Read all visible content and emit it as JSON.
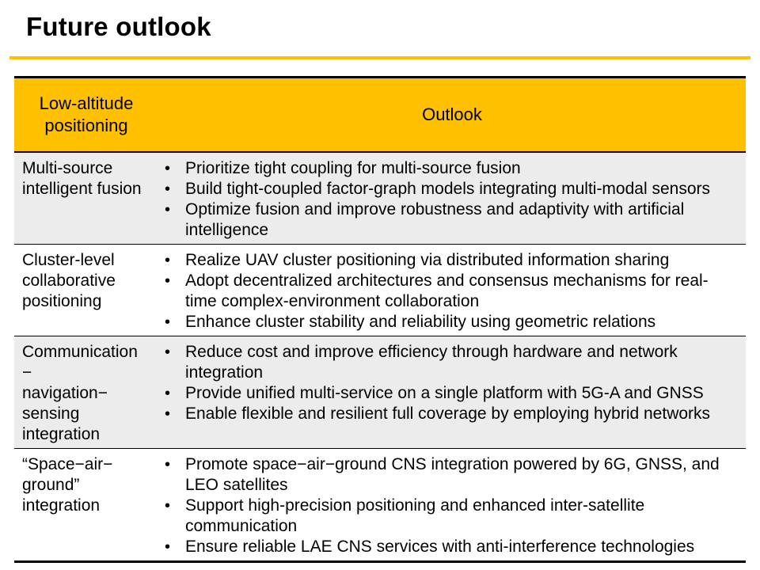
{
  "slide": {
    "title": "Future outlook"
  },
  "theme": {
    "accent_color": "#FFC000",
    "alt_row_color": "#ECECEC",
    "border_color": "#000000",
    "text_color": "#000000"
  },
  "table": {
    "bullet_char": "•",
    "headers": {
      "category": "Low-altitude\npositioning",
      "outlook": "Outlook"
    },
    "rows": [
      {
        "category": "Multi-source\nintelligent fusion",
        "bullets": [
          "Prioritize tight coupling for multi-source fusion",
          "Build tight-coupled factor-graph models integrating multi-modal sensors",
          "Optimize fusion and improve robustness and adaptivity with artificial\nintelligence"
        ]
      },
      {
        "category": "Cluster-level\ncollaborative\npositioning",
        "bullets": [
          "Realize UAV cluster positioning via distributed information sharing",
          "Adopt decentralized architectures and consensus mechanisms for real-\ntime complex-environment collaboration",
          "Enhance cluster stability and reliability using geometric relations"
        ]
      },
      {
        "category": "Communication\n−\nnavigation−\nsensing\nintegration",
        "bullets": [
          "Reduce cost and improve efficiency through hardware and network\nintegration",
          "Provide unified multi-service on a single platform with 5G-A and GNSS",
          "Enable flexible and resilient full coverage by employing hybrid networks"
        ]
      },
      {
        "category": "“Space−air−\nground”\nintegration",
        "bullets": [
          "Promote space−air−ground CNS integration powered by 6G, GNSS, and\nLEO satellites",
          "Support high-precision positioning and enhanced inter-satellite\ncommunication",
          "Ensure reliable LAE CNS services with anti-interference technologies"
        ]
      }
    ]
  }
}
